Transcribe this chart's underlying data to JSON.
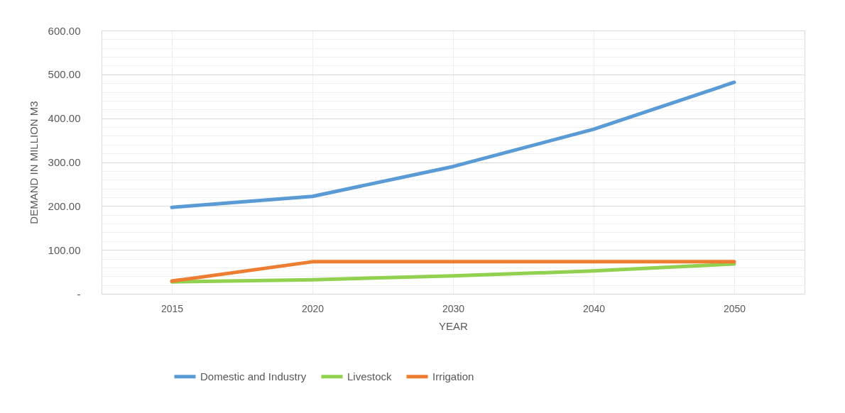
{
  "chart_data": {
    "type": "line",
    "xlabel": "YEAR",
    "ylabel": "DEMAND IN MILLION M3",
    "categories": [
      "2015",
      "2020",
      "2030",
      "2040",
      "2050"
    ],
    "series": [
      {
        "name": "Domestic and Industry",
        "color": "#5b9bd5",
        "values": [
          197,
          222,
          290,
          375,
          482
        ]
      },
      {
        "name": "Livestock",
        "color": "#92d050",
        "values": [
          27,
          32,
          41,
          52,
          68
        ]
      },
      {
        "name": "Irrigation",
        "color": "#ed7d31",
        "values": [
          29,
          73,
          73,
          73,
          73
        ]
      }
    ],
    "ylim": [
      0,
      600
    ],
    "yticks": [
      {
        "value": 0,
        "label": "-"
      },
      {
        "value": 20,
        "label": null
      },
      {
        "value": 40,
        "label": null
      },
      {
        "value": 60,
        "label": null
      },
      {
        "value": 80,
        "label": null
      },
      {
        "value": 100,
        "label": "100.00"
      },
      {
        "value": 120,
        "label": null
      },
      {
        "value": 140,
        "label": null
      },
      {
        "value": 160,
        "label": null
      },
      {
        "value": 180,
        "label": null
      },
      {
        "value": 200,
        "label": "200.00"
      },
      {
        "value": 220,
        "label": null
      },
      {
        "value": 240,
        "label": null
      },
      {
        "value": 260,
        "label": null
      },
      {
        "value": 280,
        "label": null
      },
      {
        "value": 300,
        "label": "300.00"
      },
      {
        "value": 320,
        "label": null
      },
      {
        "value": 340,
        "label": null
      },
      {
        "value": 360,
        "label": null
      },
      {
        "value": 380,
        "label": null
      },
      {
        "value": 400,
        "label": "400.00"
      },
      {
        "value": 420,
        "label": null
      },
      {
        "value": 440,
        "label": null
      },
      {
        "value": 460,
        "label": null
      },
      {
        "value": 480,
        "label": null
      },
      {
        "value": 500,
        "label": "500.00"
      },
      {
        "value": 520,
        "label": null
      },
      {
        "value": 540,
        "label": null
      },
      {
        "value": 560,
        "label": null
      },
      {
        "value": 580,
        "label": null
      },
      {
        "value": 600,
        "label": "600.00"
      }
    ],
    "grid": true,
    "legend": "bottom",
    "marker": "none",
    "line_style": "solid"
  }
}
